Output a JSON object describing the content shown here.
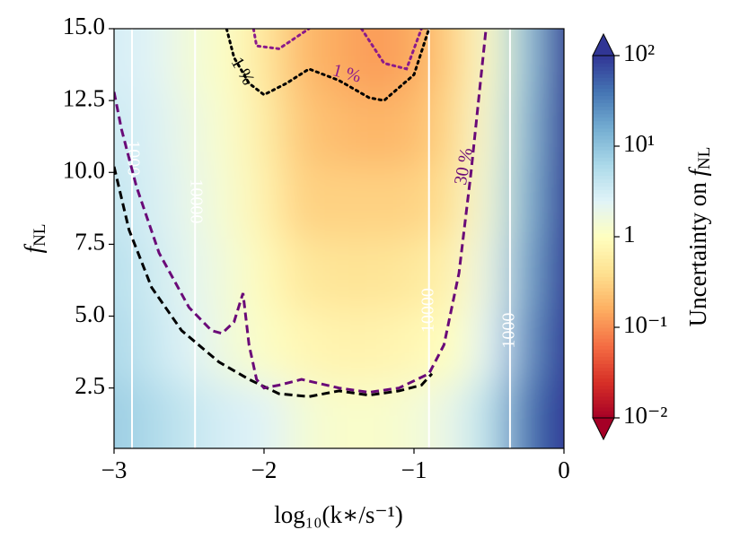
{
  "chart_data": {
    "type": "contour",
    "x_label": "log₁₀(k∗/s⁻¹)",
    "y_label": {
      "main": "f",
      "sub": "NL"
    },
    "xlim": [
      -3,
      0
    ],
    "ylim": [
      0.4,
      15
    ],
    "xticks": [
      {
        "value": -3,
        "label": "−3"
      },
      {
        "value": -2,
        "label": "−2"
      },
      {
        "value": -1,
        "label": "−1"
      },
      0
    ],
    "yticks": [
      {
        "value": 2.5,
        "label": "2.5"
      },
      {
        "value": 5,
        "label": "5.0"
      },
      7.5,
      {
        "value": 10,
        "label": "10.0"
      },
      12.5,
      {
        "value": 15,
        "label": "15.0"
      }
    ],
    "field": {
      "x": [
        -3,
        -2.75,
        -2.5,
        -2.25,
        -2,
        -1.75,
        -1.5,
        -1.25,
        -1,
        -0.75,
        -0.5,
        -0.25,
        0
      ],
      "y": [
        1.5,
        4,
        6.5,
        9,
        11.5,
        14
      ],
      "z": [
        [
          8,
          6,
          4,
          3,
          2.5,
          1.5,
          1.2,
          1.2,
          1.4,
          2,
          5,
          40,
          100
        ],
        [
          6,
          4,
          2.5,
          1.6,
          1.1,
          0.8,
          0.7,
          0.7,
          0.8,
          1,
          2.5,
          25,
          100
        ],
        [
          5,
          3.5,
          2.2,
          1.5,
          0.9,
          0.5,
          0.45,
          0.45,
          0.5,
          0.7,
          2,
          18,
          100
        ],
        [
          4,
          3,
          2,
          1.3,
          0.7,
          0.3,
          0.3,
          0.3,
          0.3,
          0.45,
          1.6,
          14,
          100
        ],
        [
          3.5,
          2.8,
          1.8,
          1.2,
          0.6,
          0.25,
          0.2,
          0.18,
          0.2,
          0.35,
          1.4,
          12,
          100
        ],
        [
          3,
          2.5,
          1.5,
          1.1,
          0.5,
          0.2,
          0.15,
          0.12,
          0.15,
          0.3,
          1.2,
          10,
          100
        ]
      ]
    },
    "contours": [
      {
        "label": "1000",
        "color": "#ffffff",
        "style": "solid",
        "x": [
          -2.88,
          -2.88
        ],
        "y": [
          0.4,
          15
        ],
        "label_x": -2.88,
        "label_y": 10.5
      },
      {
        "label": "10000",
        "color": "#ffffff",
        "style": "solid",
        "x": [
          -2.46,
          -2.46
        ],
        "y": [
          0.4,
          15
        ],
        "label_x": -2.46,
        "label_y": 9
      },
      {
        "label": "10000",
        "color": "#ffffff",
        "style": "solid",
        "x": [
          -0.9,
          -0.9
        ],
        "y": [
          0.4,
          15
        ],
        "label_x": -0.9,
        "label_y": 5.2
      },
      {
        "label": "1000",
        "color": "#ffffff",
        "style": "solid",
        "x": [
          -0.36,
          -0.36
        ],
        "y": [
          0.4,
          15
        ],
        "label_x": -0.36,
        "label_y": 4.5
      },
      {
        "color": "#000000",
        "style": "dashed",
        "x": [
          -3,
          -2.9,
          -2.75,
          -2.55,
          -2.3,
          -2.1,
          -1.9,
          -1.7,
          -1.5,
          -1.3,
          -1.1,
          -0.95,
          -0.88
        ],
        "y": [
          10.2,
          8,
          6,
          4.5,
          3.4,
          2.8,
          2.3,
          2.2,
          2.4,
          2.25,
          2.4,
          2.6,
          3
        ]
      },
      {
        "label": "30 %",
        "color": "#6a0a78",
        "style": "dashed",
        "x": [
          -3,
          -2.95,
          -2.85,
          -2.7,
          -2.5,
          -2.35,
          -2.28,
          -2.2,
          -2.14,
          -2.1,
          -2.05,
          -2,
          -1.9,
          -1.75,
          -1.5,
          -1.3,
          -1.1,
          -0.9,
          -0.8,
          -0.7,
          -0.62,
          -0.55,
          -0.52
        ],
        "y": [
          12.8,
          11.5,
          9.5,
          7.2,
          5.3,
          4.5,
          4.4,
          4.8,
          5.8,
          4,
          2.8,
          2.5,
          2.6,
          2.8,
          2.5,
          2.35,
          2.5,
          3,
          4,
          6.5,
          10,
          13.5,
          15
        ],
        "label_x": -0.66,
        "label_y": 10.2
      },
      {
        "label": "1 %",
        "color": "#000000",
        "style": "dotted",
        "x": [
          -2.25,
          -2.2,
          -2.1,
          -2,
          -1.85,
          -1.7,
          -1.5,
          -1.3,
          -1.2,
          -1,
          -0.9
        ],
        "y": [
          15,
          14,
          13.1,
          12.7,
          13.1,
          13.6,
          13.2,
          12.6,
          12.5,
          13.4,
          15
        ],
        "label_x": -2.15,
        "label_y": 13.5
      },
      {
        "label": "1 %",
        "color": "#8b1a8b",
        "style": "dotted",
        "x": [
          -2.07,
          -2.05,
          -1.9,
          -1.7,
          null,
          -1.35,
          -1.2,
          -1.05,
          -0.95
        ],
        "y": [
          15,
          14.4,
          14.3,
          15,
          null,
          15,
          13.8,
          13.6,
          15
        ],
        "label_x": -1.45,
        "label_y": 13.4
      }
    ],
    "colorbar": {
      "label": {
        "main": "Uncertainty on ",
        "f": "f",
        "sub": "NL"
      },
      "log": true,
      "lim": [
        0.01,
        100
      ],
      "ticks": [
        {
          "value": 0.01,
          "label": "10⁻²"
        },
        {
          "value": 0.1,
          "label": "10⁻¹"
        },
        1,
        {
          "value": 10,
          "label": "10¹"
        },
        {
          "value": 100,
          "label": "10²"
        }
      ],
      "extend": "both",
      "colormap": [
        "#a50026",
        "#d73027",
        "#f46d43",
        "#fdae61",
        "#fee090",
        "#ffffbf",
        "#e0f3f8",
        "#abd9e9",
        "#74add1",
        "#4575b4",
        "#313695"
      ]
    }
  }
}
